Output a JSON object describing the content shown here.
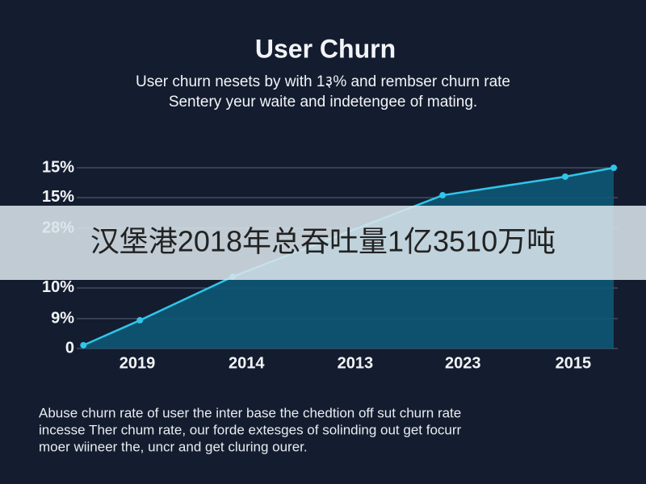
{
  "chart_data": {
    "type": "area",
    "title": "User Churn",
    "subtitle": [
      "User churn nesets by with 1३% and rembser churn rate",
      "Sentery yeur waite and indetengee of mating."
    ],
    "x": [
      0.5,
      11.1,
      28.5,
      67.9,
      90.9,
      100
    ],
    "values": [
      1.8,
      15.6,
      39.7,
      84.8,
      95.1,
      100
    ],
    "xlim": [
      0,
      100
    ],
    "xticks": [
      {
        "value": 10.6,
        "label": "2019"
      },
      {
        "value": 31.1,
        "label": "2014"
      },
      {
        "value": 51.5,
        "label": "2013"
      },
      {
        "value": 71.7,
        "label": "2023"
      },
      {
        "value": 92.4,
        "label": "2015"
      }
    ],
    "ylim": [
      0,
      100
    ],
    "yticks": [
      0,
      {
        "value": 16.5,
        "label": "9%"
      },
      {
        "value": 33.5,
        "label": "10%"
      },
      {
        "value": 66.5,
        "label": "28%"
      },
      {
        "value": 83.5,
        "label": "15%"
      },
      {
        "value": 100,
        "label": "15%"
      }
    ],
    "grid": true,
    "color": "#2fc6ea",
    "fill_color": "#0d5876",
    "footnote": [
      "Abuse churn rate of user the inter base the chedtion off sut churn rate",
      "incesse Ther chum rate, our forde extesges of solinding out get focurr",
      "moer wiineer the, uncr and get cluring ourer."
    ]
  },
  "banner": {
    "text": "汉堡港2018年总吞吐量1亿3510万吨"
  }
}
